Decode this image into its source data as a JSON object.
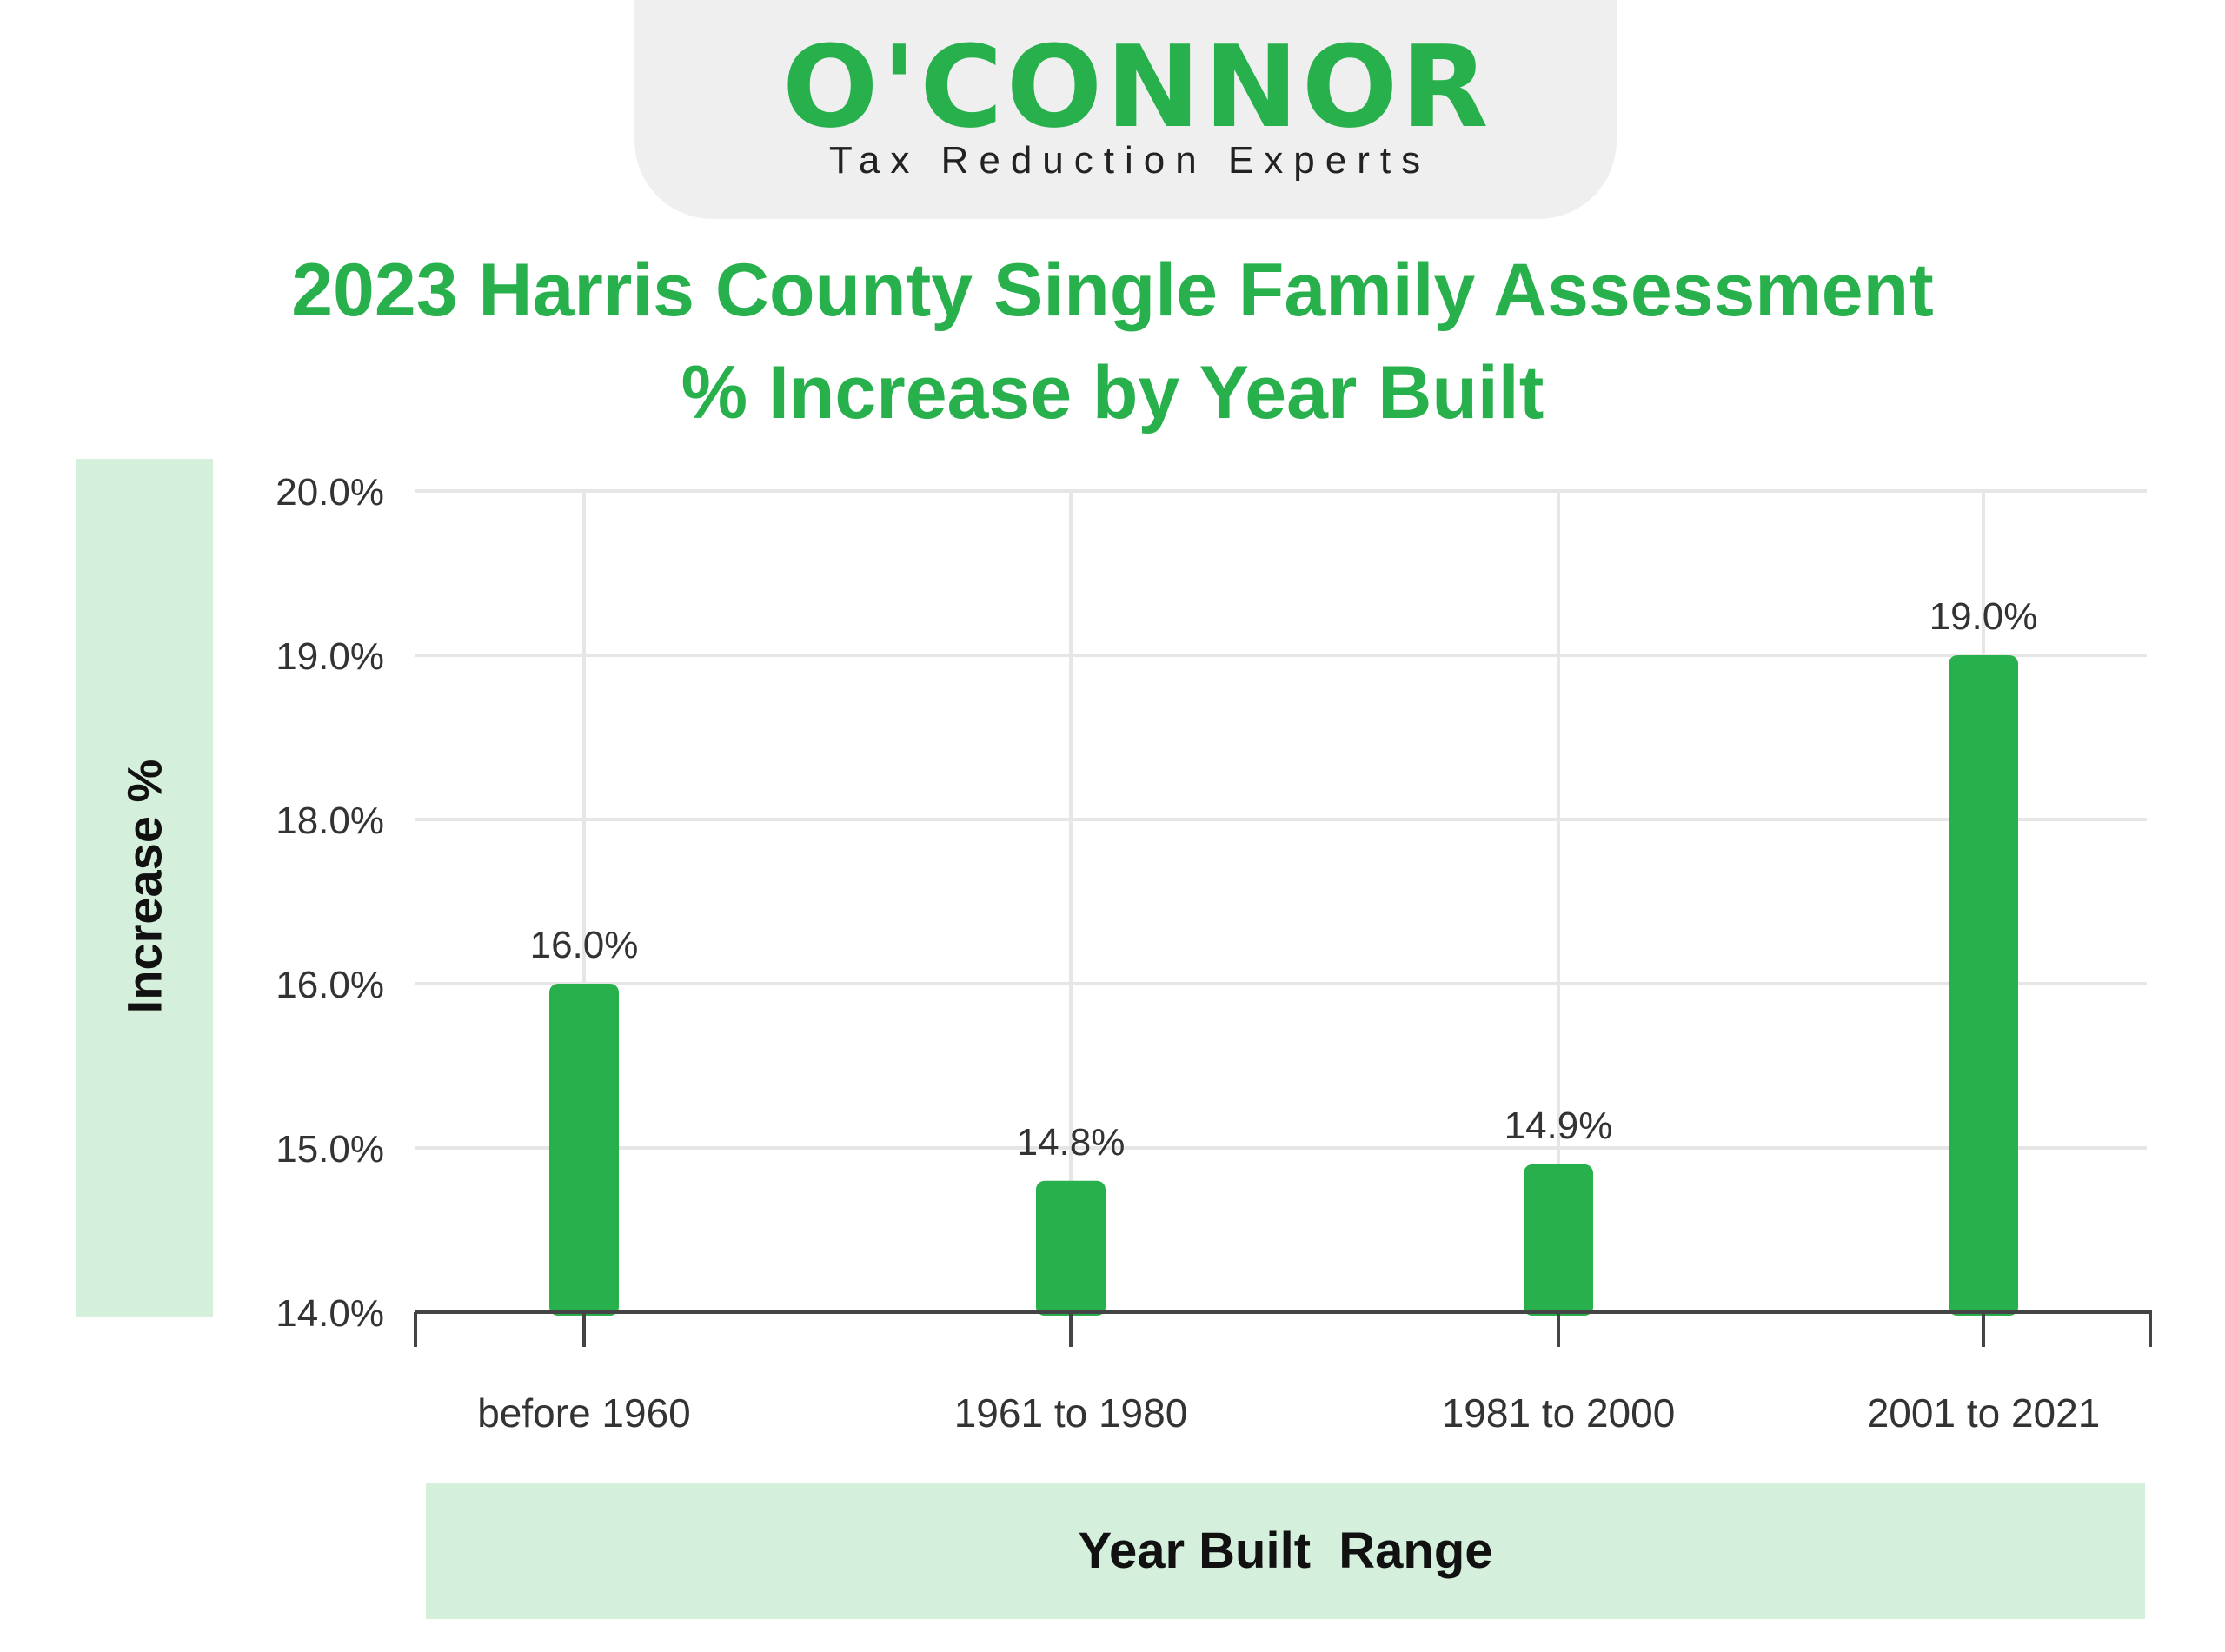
{
  "brand": {
    "name": "O'CONNOR",
    "tagline": "Tax Reduction Experts",
    "color": "#27b04b"
  },
  "chart_data": {
    "type": "bar",
    "title": "2023 Harris County Single Family Assessment % Increase by Year Built",
    "xlabel": "Year Built  Range",
    "ylabel": "Increase %",
    "categories": [
      "before 1960",
      "1961 to 1980",
      "1981 to 2000",
      "2001 to 2021"
    ],
    "values": [
      16.0,
      14.8,
      14.9,
      19.0
    ],
    "value_labels": [
      "16.0%",
      "14.8%",
      "14.9%",
      "19.0%"
    ],
    "y_ticks": [
      14,
      15,
      16,
      18,
      19,
      20
    ],
    "y_tick_labels": [
      "14.0%",
      "15.0%",
      "16.0%",
      "18.0%",
      "19.0%",
      "20.0%"
    ],
    "ylim": [
      14,
      20
    ],
    "grid": true,
    "bar_color": "#27b04b"
  }
}
